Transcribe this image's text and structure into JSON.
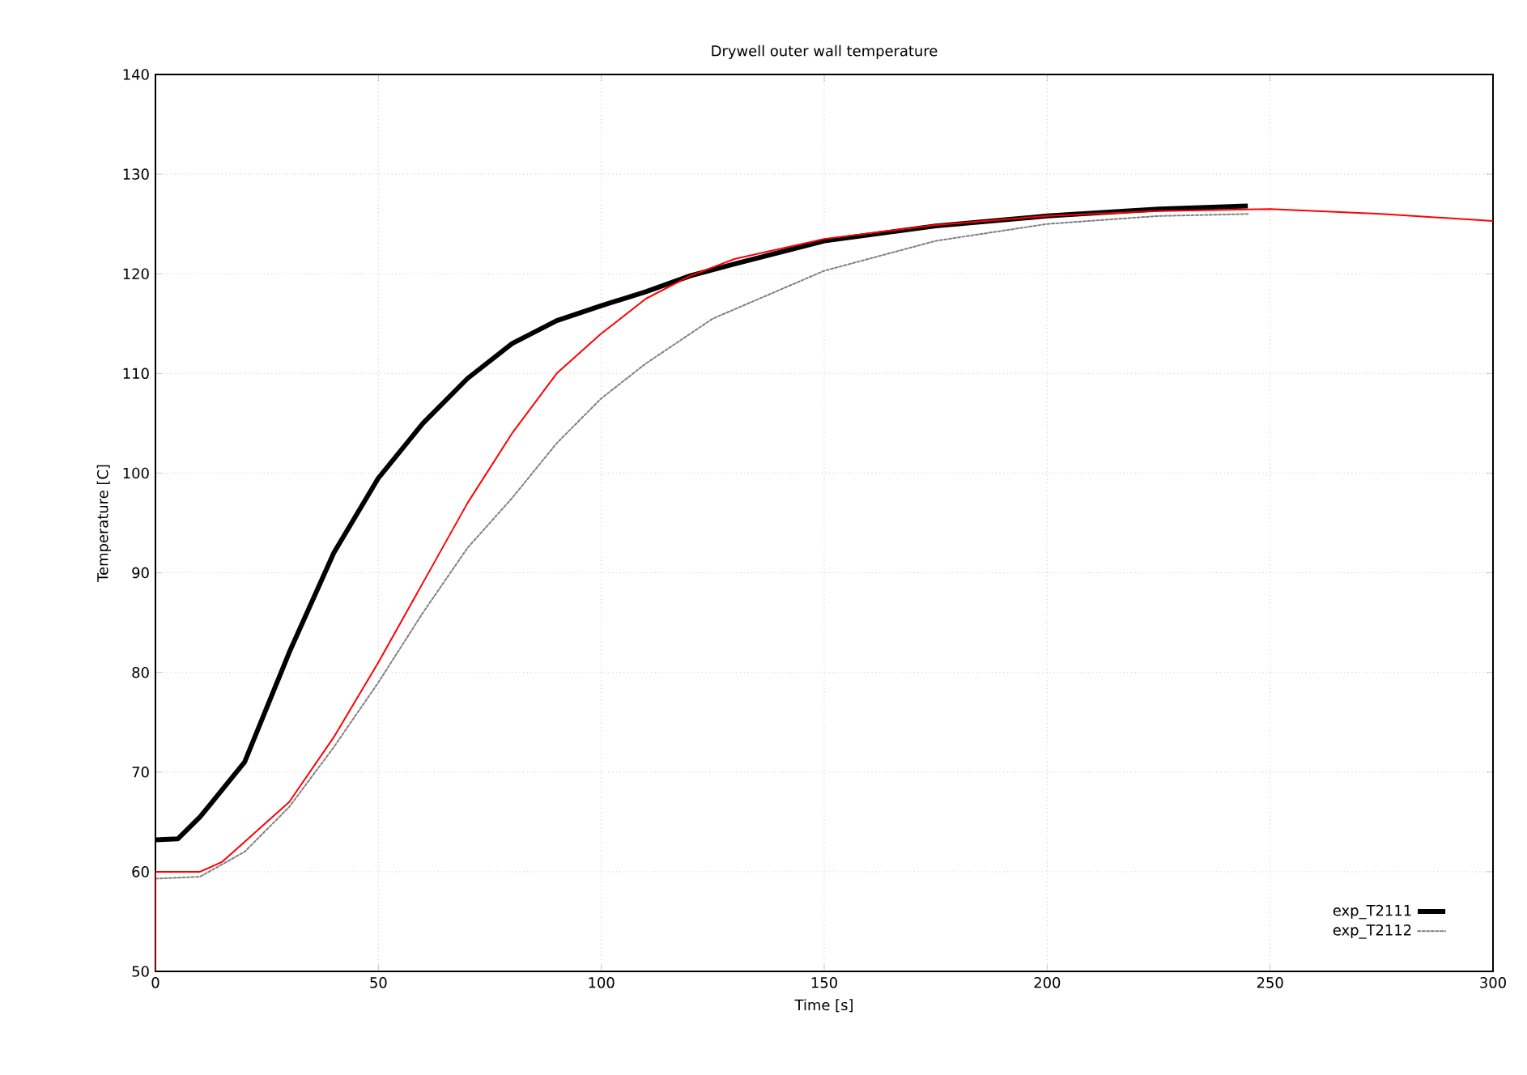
{
  "chart_data": {
    "type": "line",
    "title": "Drywell outer wall temperature",
    "xlabel": "Time [s]",
    "ylabel": "Temperature [C]",
    "xlim": [
      0,
      300
    ],
    "ylim": [
      50,
      140
    ],
    "xticks": [
      0,
      50,
      100,
      150,
      200,
      250,
      300
    ],
    "yticks": [
      50,
      60,
      70,
      80,
      90,
      100,
      110,
      120,
      130,
      140
    ],
    "grid": true,
    "legend": "bottom right",
    "series": [
      {
        "name": "exp_T2111",
        "color": "#000000",
        "line_style": "solid",
        "x": [
          0,
          5,
          10,
          20,
          30,
          40,
          50,
          60,
          70,
          80,
          90,
          100,
          110,
          120,
          130,
          150,
          175,
          200,
          225,
          245
        ],
        "values": [
          63.2,
          63.3,
          65.5,
          71,
          82,
          92,
          99.5,
          105,
          109.5,
          113,
          115.3,
          116.8,
          118.2,
          119.8,
          121,
          123.3,
          124.8,
          125.8,
          126.5,
          126.8
        ]
      },
      {
        "name": "exp_T2112",
        "color": "#808080",
        "line_style": "dotted",
        "x": [
          0,
          10,
          20,
          30,
          40,
          50,
          60,
          70,
          80,
          90,
          100,
          110,
          125,
          150,
          175,
          200,
          225,
          245
        ],
        "values": [
          59.3,
          59.5,
          62,
          66.5,
          72.5,
          79,
          86,
          92.5,
          97.5,
          103,
          107.5,
          111,
          115.5,
          120.3,
          123.3,
          125,
          125.8,
          126
        ]
      },
      {
        "color": "#ff0000",
        "line_style": "solid",
        "x": [
          0,
          0,
          10,
          15,
          20,
          30,
          40,
          50,
          60,
          70,
          80,
          90,
          100,
          110,
          120,
          130,
          150,
          175,
          200,
          225,
          250,
          275,
          300
        ],
        "values": [
          50,
          60,
          60,
          61,
          63,
          67,
          73.5,
          81,
          89,
          97,
          104,
          110,
          114,
          117.5,
          119.8,
          121.5,
          123.5,
          124.9,
          125.8,
          126.3,
          126.5,
          126,
          125.3
        ]
      }
    ]
  }
}
